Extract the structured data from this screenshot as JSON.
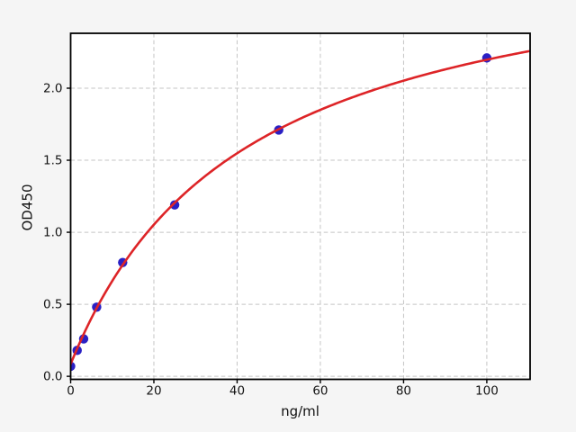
{
  "figure": {
    "background": "#f5f5f5",
    "plot_background": "#ffffff",
    "grid_color": "#c5c5c5",
    "spine_color": "#000000"
  },
  "chart_data": {
    "type": "scatter",
    "title": "",
    "xlabel": "ng/ml",
    "ylabel": "OD450",
    "xlim": [
      0,
      110.4
    ],
    "ylim": [
      -0.021,
      2.381
    ],
    "xticks": [
      0,
      20,
      40,
      60,
      80,
      100
    ],
    "yticks": [
      0.0,
      0.5,
      1.0,
      1.5,
      2.0
    ],
    "grid": true,
    "grid_style": "dashed",
    "legend": "none",
    "series": [
      {
        "name": "standard-points",
        "type": "scatter",
        "color": "#2a20c4",
        "marker": "circle",
        "marker_radius": 5.2,
        "x": [
          0,
          1.5625,
          3.125,
          6.25,
          12.5,
          25,
          50,
          100
        ],
        "y": [
          0.07,
          0.18,
          0.26,
          0.48,
          0.79,
          1.19,
          1.71,
          2.21
        ]
      },
      {
        "name": "fit-curve",
        "type": "line",
        "color": "#dd2427",
        "width": 2.6,
        "fit": {
          "model": "y = d + bmax*x/(k+x)",
          "d": 0.085,
          "bmax": 3.0,
          "k": 42
        }
      }
    ]
  }
}
